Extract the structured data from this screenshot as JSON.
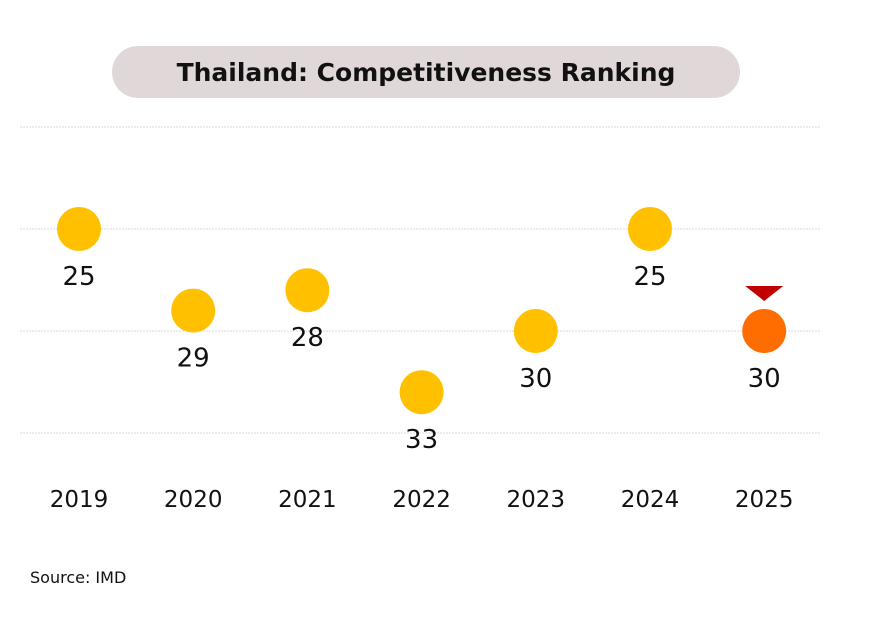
{
  "chart_data": {
    "type": "scatter",
    "title": "Thailand: Competitiveness Ranking",
    "xlabel": "",
    "ylabel": "",
    "categories": [
      "2019",
      "2020",
      "2021",
      "2022",
      "2023",
      "2024",
      "2025"
    ],
    "values": [
      25,
      29,
      28,
      33,
      30,
      25,
      30
    ],
    "ylim": [
      20,
      35
    ],
    "y_inverted": true,
    "gridlines": [
      20,
      25,
      30,
      35
    ],
    "grid": true,
    "highlight_index": 6,
    "highlight_marker": "down-triangle",
    "colors": {
      "point": "#ffc000",
      "highlight": "#ff6d00",
      "marker": "#c00000",
      "grid": "#d9d9d9",
      "title_bg": "#e0d8d8"
    }
  },
  "source": "Source: IMD"
}
